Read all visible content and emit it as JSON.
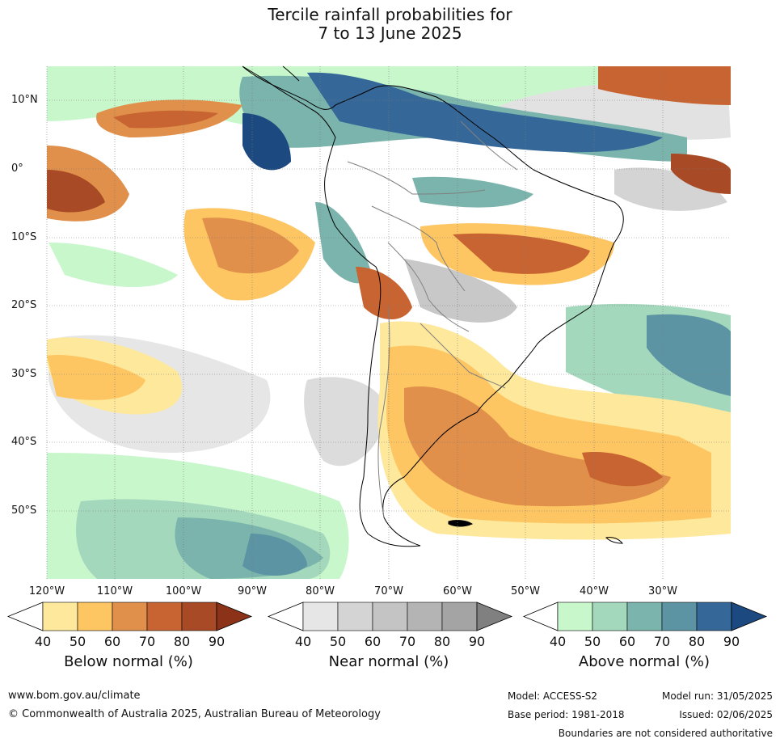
{
  "header": {
    "title_line1": "Tercile rainfall probabilities for",
    "title_line2": "7 to 13 June 2025"
  },
  "map": {
    "lat_labels": [
      "10°N",
      "0°",
      "10°S",
      "20°S",
      "30°S",
      "40°S",
      "50°S"
    ],
    "lon_labels": [
      "120°W",
      "110°W",
      "100°W",
      "90°W",
      "80°W",
      "70°W",
      "60°W",
      "50°W",
      "40°W",
      "30°W"
    ],
    "colors": {
      "ocean_bg": "#ffffff",
      "coast": "#000000",
      "border": "#808080",
      "grid": "#7a7a7a"
    }
  },
  "legend": {
    "below": {
      "title": "Below normal (%)",
      "ticks": [
        "40",
        "50",
        "60",
        "70",
        "80",
        "90"
      ],
      "colors": [
        "#ffffff",
        "#fee89c",
        "#fdc662",
        "#e0904a",
        "#c86432",
        "#a84a26",
        "#8c3218"
      ]
    },
    "near": {
      "title": "Near normal (%)",
      "ticks": [
        "40",
        "50",
        "60",
        "70",
        "80",
        "90"
      ],
      "colors": [
        "#ffffff",
        "#e6e6e6",
        "#d4d4d4",
        "#c4c4c4",
        "#b4b4b4",
        "#a4a4a4",
        "#808080"
      ]
    },
    "above": {
      "title": "Above normal (%)",
      "ticks": [
        "40",
        "50",
        "60",
        "70",
        "80",
        "90"
      ],
      "colors": [
        "#ffffff",
        "#c8f7cc",
        "#a4d8bc",
        "#7ab4ac",
        "#5c94a4",
        "#356898",
        "#1c4a80"
      ]
    }
  },
  "footer": {
    "url": "www.bom.gov.au/climate",
    "copyright": "© Commonwealth of Australia 2025, Australian Bureau of Meteorology",
    "model": "Model: ACCESS-S2",
    "model_run": "Model run: 31/05/2025",
    "base_period": "Base period: 1981-2018",
    "issued": "Issued: 02/06/2025",
    "disclaimer": "Boundaries are not considered authoritative"
  }
}
